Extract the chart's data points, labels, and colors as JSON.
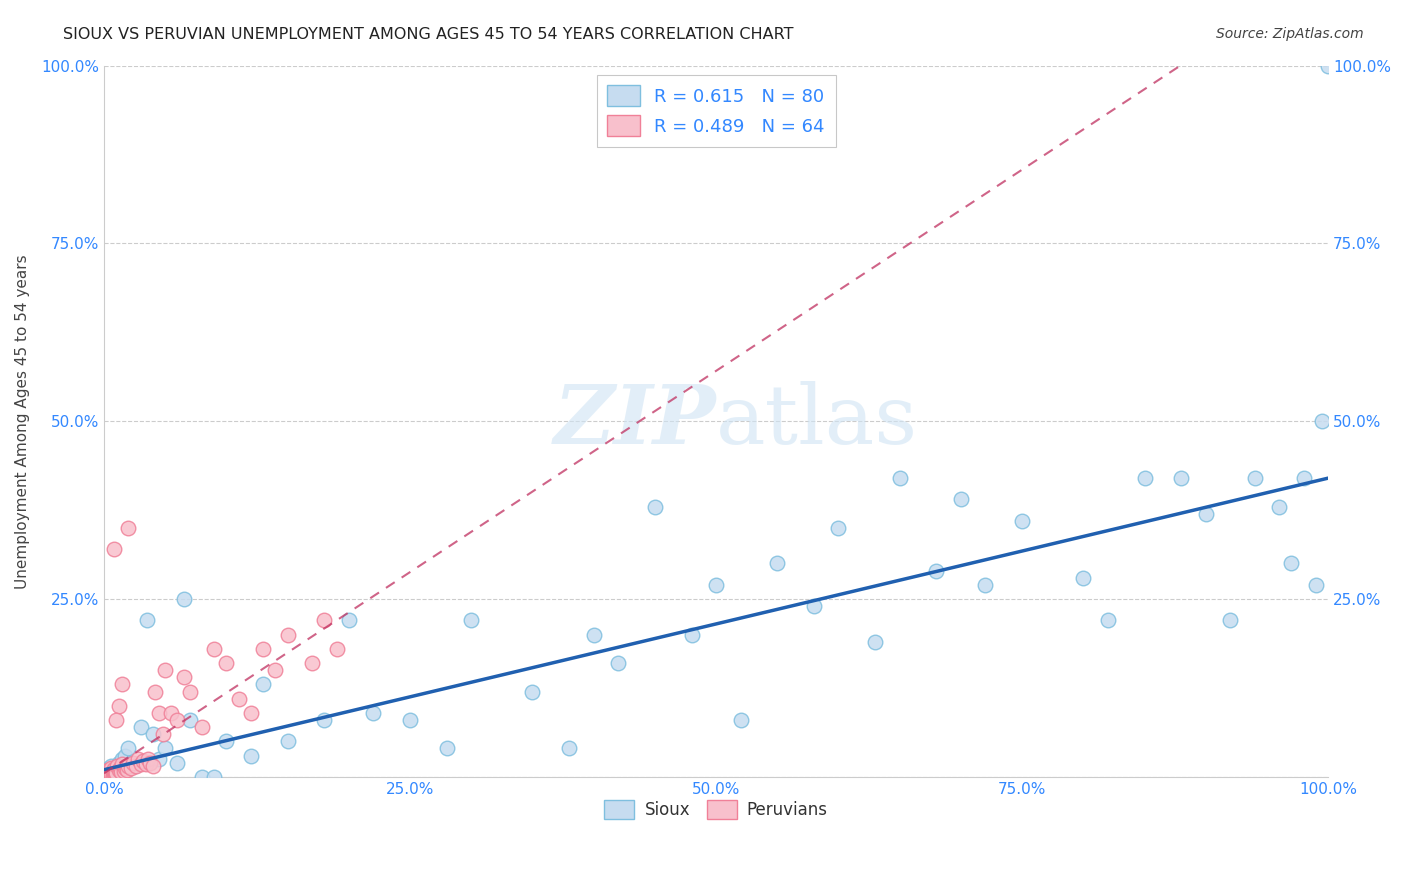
{
  "title": "SIOUX VS PERUVIAN UNEMPLOYMENT AMONG AGES 45 TO 54 YEARS CORRELATION CHART",
  "source": "Source: ZipAtlas.com",
  "ylabel": "Unemployment Among Ages 45 to 54 years",
  "sioux_R": 0.615,
  "sioux_N": 80,
  "peruvian_R": 0.489,
  "peruvian_N": 64,
  "sioux_color": "#7fbfdf",
  "sioux_fill": "#c6dcf0",
  "peruvian_color": "#f08098",
  "peruvian_fill": "#f8c0cc",
  "trend_sioux_color": "#2060b0",
  "trend_peruvian_color": "#c03060",
  "bg_color": "#ffffff",
  "watermark_color": "#d0e4f4",
  "xlim": [
    0,
    1
  ],
  "ylim": [
    0,
    1
  ],
  "xticks": [
    0.0,
    0.25,
    0.5,
    0.75,
    1.0
  ],
  "yticks": [
    0.0,
    0.25,
    0.5,
    0.75,
    1.0
  ],
  "xticklabels": [
    "0.0%",
    "25.0%",
    "50.0%",
    "75.0%",
    "100.0%"
  ],
  "yticklabels_left": [
    "",
    "25.0%",
    "50.0%",
    "75.0%",
    "100.0%"
  ],
  "yticklabels_right": [
    "",
    "25.0%",
    "50.0%",
    "75.0%",
    "100.0%"
  ],
  "sioux_x": [
    0.001,
    0.002,
    0.002,
    0.003,
    0.003,
    0.004,
    0.004,
    0.005,
    0.005,
    0.006,
    0.006,
    0.007,
    0.007,
    0.008,
    0.008,
    0.009,
    0.009,
    0.01,
    0.01,
    0.011,
    0.012,
    0.013,
    0.014,
    0.015,
    0.015,
    0.017,
    0.018,
    0.02,
    0.022,
    0.025,
    0.03,
    0.035,
    0.04,
    0.045,
    0.05,
    0.06,
    0.065,
    0.07,
    0.08,
    0.09,
    0.1,
    0.12,
    0.13,
    0.15,
    0.18,
    0.2,
    0.22,
    0.25,
    0.28,
    0.3,
    0.35,
    0.38,
    0.4,
    0.42,
    0.45,
    0.48,
    0.5,
    0.52,
    0.55,
    0.58,
    0.6,
    0.63,
    0.65,
    0.68,
    0.7,
    0.72,
    0.75,
    0.8,
    0.82,
    0.85,
    0.88,
    0.9,
    0.92,
    0.94,
    0.96,
    0.97,
    0.98,
    0.99,
    0.995,
    1.0
  ],
  "sioux_y": [
    0.003,
    0.008,
    0.002,
    0.005,
    0.01,
    0.004,
    0.012,
    0.003,
    0.007,
    0.006,
    0.015,
    0.004,
    0.009,
    0.003,
    0.011,
    0.005,
    0.013,
    0.003,
    0.008,
    0.006,
    0.02,
    0.015,
    0.01,
    0.025,
    0.005,
    0.03,
    0.015,
    0.04,
    0.02,
    0.015,
    0.07,
    0.22,
    0.06,
    0.025,
    0.04,
    0.02,
    0.25,
    0.08,
    0.0,
    0.0,
    0.05,
    0.03,
    0.13,
    0.05,
    0.08,
    0.22,
    0.09,
    0.08,
    0.04,
    0.22,
    0.12,
    0.04,
    0.2,
    0.16,
    0.38,
    0.2,
    0.27,
    0.08,
    0.3,
    0.24,
    0.35,
    0.19,
    0.42,
    0.29,
    0.39,
    0.27,
    0.36,
    0.28,
    0.22,
    0.42,
    0.42,
    0.37,
    0.22,
    0.42,
    0.38,
    0.3,
    0.42,
    0.27,
    0.5,
    1.0
  ],
  "peruvian_x": [
    0.001,
    0.001,
    0.002,
    0.002,
    0.003,
    0.003,
    0.004,
    0.004,
    0.005,
    0.005,
    0.006,
    0.006,
    0.007,
    0.007,
    0.008,
    0.008,
    0.009,
    0.009,
    0.01,
    0.01,
    0.011,
    0.012,
    0.013,
    0.014,
    0.015,
    0.016,
    0.017,
    0.018,
    0.019,
    0.02,
    0.022,
    0.024,
    0.026,
    0.028,
    0.03,
    0.032,
    0.034,
    0.036,
    0.038,
    0.04,
    0.042,
    0.045,
    0.048,
    0.05,
    0.055,
    0.06,
    0.065,
    0.07,
    0.08,
    0.09,
    0.1,
    0.11,
    0.12,
    0.13,
    0.14,
    0.15,
    0.17,
    0.18,
    0.19,
    0.02,
    0.015,
    0.012,
    0.01,
    0.008
  ],
  "peruvian_y": [
    0.003,
    0.006,
    0.002,
    0.008,
    0.004,
    0.01,
    0.003,
    0.007,
    0.005,
    0.009,
    0.004,
    0.012,
    0.003,
    0.008,
    0.004,
    0.011,
    0.003,
    0.007,
    0.003,
    0.006,
    0.015,
    0.01,
    0.012,
    0.007,
    0.018,
    0.008,
    0.012,
    0.015,
    0.009,
    0.015,
    0.012,
    0.02,
    0.015,
    0.025,
    0.018,
    0.022,
    0.018,
    0.025,
    0.02,
    0.015,
    0.12,
    0.09,
    0.06,
    0.15,
    0.09,
    0.08,
    0.14,
    0.12,
    0.07,
    0.18,
    0.16,
    0.11,
    0.09,
    0.18,
    0.15,
    0.2,
    0.16,
    0.22,
    0.18,
    0.35,
    0.13,
    0.1,
    0.08,
    0.32
  ],
  "sioux_trend_x0": 0.0,
  "sioux_trend_y0": 0.01,
  "sioux_trend_x1": 1.0,
  "sioux_trend_y1": 0.42,
  "peruvian_trend_x0": 0.0,
  "peruvian_trend_y0": 0.005,
  "peruvian_trend_x1": 0.19,
  "peruvian_trend_y1": 0.22
}
